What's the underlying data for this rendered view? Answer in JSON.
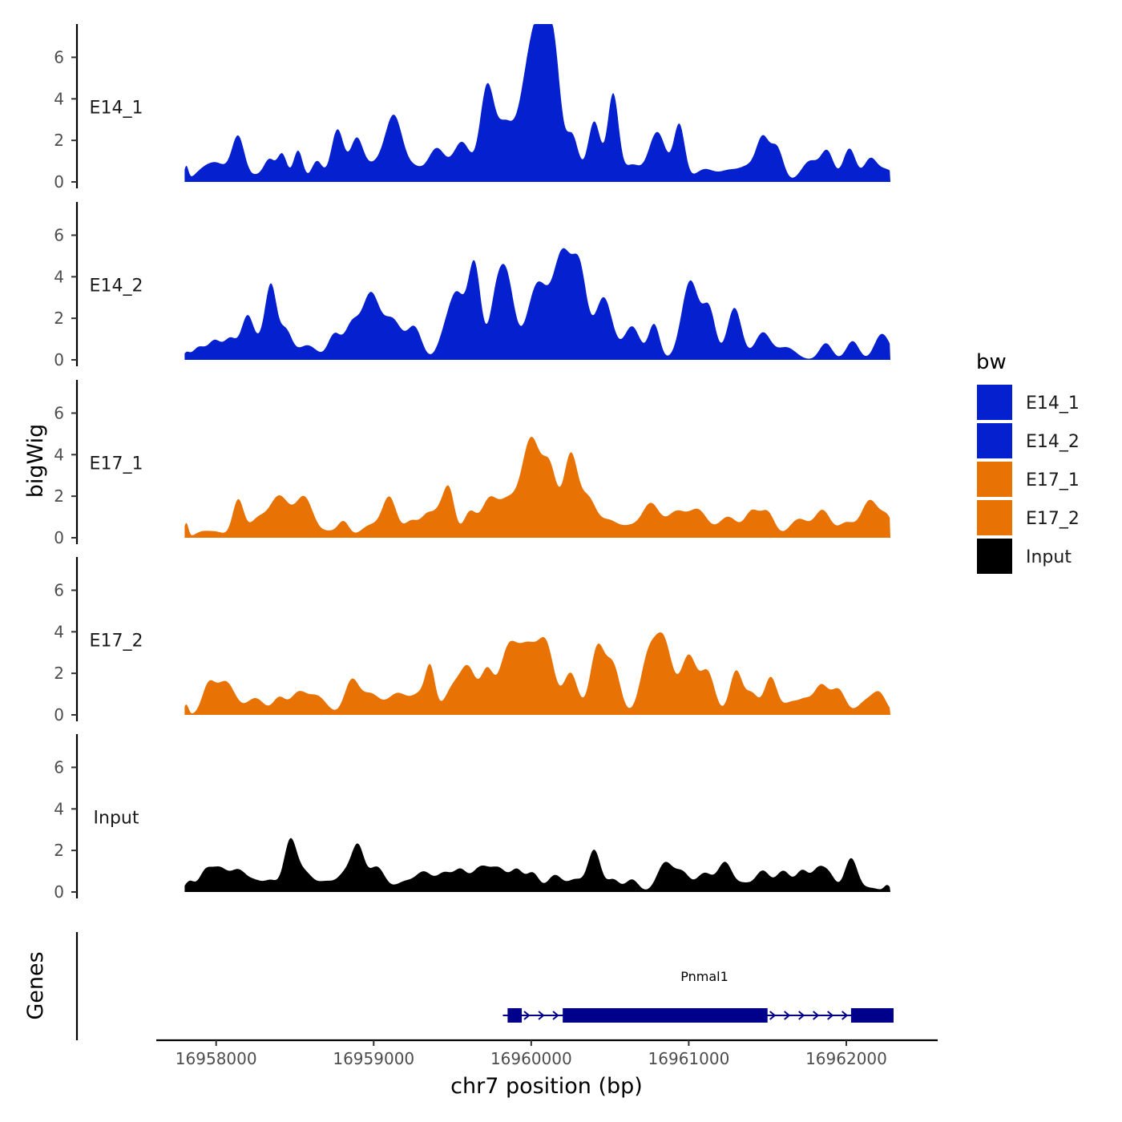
{
  "chart_data": {
    "type": "area",
    "xlabel": "chr7 position (bp)",
    "ylabel": "bigWig",
    "genes_label": "Genes",
    "xlim": [
      16957620,
      16962580
    ],
    "x_ticks": [
      16958000,
      16959000,
      16960000,
      16961000,
      16962000
    ],
    "x_tick_labels": [
      "16958000",
      "16959000",
      "16960000",
      "16961000",
      "16962000"
    ],
    "ylim": [
      0,
      7.6
    ],
    "y_ticks": [
      0,
      2,
      4,
      6
    ],
    "y_tick_labels": [
      "0",
      "2",
      "4",
      "6"
    ],
    "track_start": 16957800,
    "track_end": 16962280,
    "legend": {
      "title": "bw",
      "entries": [
        {
          "label": "E14_1",
          "color": "#0520CF"
        },
        {
          "label": "E14_2",
          "color": "#0520CF"
        },
        {
          "label": "E17_1",
          "color": "#E87204"
        },
        {
          "label": "E17_2",
          "color": "#E87204"
        },
        {
          "label": "Input",
          "color": "#000000"
        }
      ]
    },
    "series": [
      {
        "name": "E14_1",
        "color": "#0520CF",
        "peaks": [
          [
            16957810,
            0.7,
            14
          ],
          [
            16957900,
            0.3,
            50
          ],
          [
            16958000,
            0.9,
            70
          ],
          [
            16958140,
            2.1,
            40
          ],
          [
            16958260,
            0.3,
            50
          ],
          [
            16958340,
            1.0,
            35
          ],
          [
            16958420,
            1.3,
            30
          ],
          [
            16958520,
            1.5,
            30
          ],
          [
            16958640,
            1.0,
            35
          ],
          [
            16958770,
            2.5,
            40
          ],
          [
            16958890,
            1.8,
            40
          ],
          [
            16959000,
            0.8,
            80
          ],
          [
            16959130,
            3.0,
            55
          ],
          [
            16959260,
            0.6,
            50
          ],
          [
            16959400,
            1.6,
            55
          ],
          [
            16959560,
            1.9,
            55
          ],
          [
            16959720,
            4.5,
            45
          ],
          [
            16959830,
            2.4,
            50
          ],
          [
            16959990,
            5.1,
            70
          ],
          [
            16960080,
            5.0,
            60
          ],
          [
            16960150,
            4.0,
            40
          ],
          [
            16960260,
            2.2,
            40
          ],
          [
            16960400,
            2.9,
            40
          ],
          [
            16960520,
            4.2,
            35
          ],
          [
            16960640,
            0.8,
            50
          ],
          [
            16960800,
            2.4,
            55
          ],
          [
            16960940,
            2.7,
            35
          ],
          [
            16961100,
            0.6,
            60
          ],
          [
            16961250,
            0.5,
            60
          ],
          [
            16961380,
            0.7,
            60
          ],
          [
            16961470,
            1.9,
            40
          ],
          [
            16961560,
            1.6,
            40
          ],
          [
            16961770,
            1.0,
            55
          ],
          [
            16961880,
            1.4,
            40
          ],
          [
            16962020,
            1.6,
            40
          ],
          [
            16962150,
            1.0,
            40
          ],
          [
            16962250,
            0.6,
            60
          ]
        ]
      },
      {
        "name": "E14_2",
        "color": "#0520CF",
        "peaks": [
          [
            16957810,
            0.3,
            20
          ],
          [
            16957890,
            0.6,
            40
          ],
          [
            16957990,
            0.9,
            40
          ],
          [
            16958090,
            1.0,
            40
          ],
          [
            16958200,
            2.1,
            40
          ],
          [
            16958300,
            0.8,
            40
          ],
          [
            16958350,
            3.2,
            35
          ],
          [
            16958440,
            1.4,
            40
          ],
          [
            16958580,
            0.7,
            60
          ],
          [
            16958750,
            1.2,
            40
          ],
          [
            16958860,
            1.6,
            45
          ],
          [
            16958980,
            3.1,
            55
          ],
          [
            16959120,
            1.9,
            60
          ],
          [
            16959260,
            1.5,
            45
          ],
          [
            16959450,
            1.0,
            45
          ],
          [
            16959530,
            3.0,
            50
          ],
          [
            16959640,
            4.5,
            40
          ],
          [
            16959770,
            2.0,
            40
          ],
          [
            16959840,
            4.0,
            50
          ],
          [
            16960040,
            3.6,
            65
          ],
          [
            16960200,
            5.0,
            60
          ],
          [
            16960310,
            3.8,
            45
          ],
          [
            16960460,
            3.0,
            55
          ],
          [
            16960640,
            1.6,
            50
          ],
          [
            16960780,
            1.7,
            35
          ],
          [
            16961010,
            3.8,
            55
          ],
          [
            16961130,
            2.3,
            40
          ],
          [
            16961290,
            2.5,
            45
          ],
          [
            16961470,
            1.3,
            50
          ],
          [
            16961620,
            0.6,
            60
          ],
          [
            16961870,
            0.8,
            40
          ],
          [
            16962040,
            0.9,
            40
          ],
          [
            16962210,
            0.9,
            40
          ],
          [
            16962260,
            0.6,
            40
          ]
        ]
      },
      {
        "name": "E17_1",
        "color": "#E87204",
        "peaks": [
          [
            16957810,
            0.7,
            14
          ],
          [
            16957900,
            0.2,
            40
          ],
          [
            16957990,
            0.3,
            60
          ],
          [
            16958140,
            1.8,
            35
          ],
          [
            16958260,
            0.8,
            50
          ],
          [
            16958400,
            2.0,
            65
          ],
          [
            16958560,
            1.9,
            55
          ],
          [
            16958720,
            0.3,
            60
          ],
          [
            16958810,
            0.7,
            35
          ],
          [
            16958980,
            0.6,
            60
          ],
          [
            16959100,
            1.9,
            45
          ],
          [
            16959240,
            0.8,
            45
          ],
          [
            16959340,
            1.0,
            40
          ],
          [
            16959420,
            1.1,
            40
          ],
          [
            16959480,
            2.1,
            35
          ],
          [
            16959610,
            1.2,
            40
          ],
          [
            16959730,
            1.7,
            50
          ],
          [
            16959850,
            1.7,
            60
          ],
          [
            16960000,
            4.7,
            60
          ],
          [
            16960120,
            3.0,
            45
          ],
          [
            16960250,
            3.9,
            45
          ],
          [
            16960360,
            1.8,
            50
          ],
          [
            16960490,
            0.8,
            60
          ],
          [
            16960630,
            0.5,
            60
          ],
          [
            16960760,
            1.6,
            55
          ],
          [
            16960920,
            1.2,
            60
          ],
          [
            16961060,
            1.3,
            60
          ],
          [
            16961250,
            1.0,
            60
          ],
          [
            16961400,
            1.2,
            45
          ],
          [
            16961500,
            1.2,
            45
          ],
          [
            16961700,
            0.9,
            60
          ],
          [
            16961850,
            1.3,
            50
          ],
          [
            16962000,
            0.7,
            50
          ],
          [
            16962150,
            1.8,
            55
          ],
          [
            16962260,
            0.9,
            40
          ]
        ]
      },
      {
        "name": "E17_2",
        "color": "#E87204",
        "peaks": [
          [
            16957810,
            0.5,
            15
          ],
          [
            16957950,
            1.3,
            40
          ],
          [
            16958060,
            1.6,
            60
          ],
          [
            16958250,
            0.8,
            55
          ],
          [
            16958400,
            0.8,
            40
          ],
          [
            16958520,
            1.0,
            50
          ],
          [
            16958640,
            0.9,
            60
          ],
          [
            16958860,
            1.6,
            45
          ],
          [
            16958980,
            1.0,
            60
          ],
          [
            16959150,
            1.0,
            60
          ],
          [
            16959300,
            1.0,
            60
          ],
          [
            16959360,
            1.8,
            30
          ],
          [
            16959500,
            1.2,
            50
          ],
          [
            16959600,
            2.2,
            50
          ],
          [
            16959720,
            2.0,
            40
          ],
          [
            16959850,
            2.8,
            55
          ],
          [
            16959980,
            3.2,
            70
          ],
          [
            16960100,
            2.8,
            50
          ],
          [
            16960250,
            2.0,
            45
          ],
          [
            16960420,
            3.2,
            45
          ],
          [
            16960520,
            2.3,
            45
          ],
          [
            16960740,
            2.5,
            50
          ],
          [
            16960840,
            3.5,
            55
          ],
          [
            16961000,
            2.8,
            50
          ],
          [
            16961120,
            2.0,
            45
          ],
          [
            16961300,
            2.1,
            40
          ],
          [
            16961400,
            1.0,
            40
          ],
          [
            16961520,
            1.8,
            40
          ],
          [
            16961650,
            0.6,
            50
          ],
          [
            16961740,
            0.6,
            40
          ],
          [
            16961840,
            1.4,
            45
          ],
          [
            16961950,
            1.2,
            45
          ],
          [
            16962120,
            0.6,
            50
          ],
          [
            16962210,
            1.0,
            45
          ]
        ]
      },
      {
        "name": "Input",
        "color": "#000000",
        "peaks": [
          [
            16957830,
            0.5,
            30
          ],
          [
            16957930,
            0.9,
            40
          ],
          [
            16958020,
            1.1,
            50
          ],
          [
            16958140,
            1.0,
            50
          ],
          [
            16958250,
            0.5,
            50
          ],
          [
            16958350,
            0.5,
            40
          ],
          [
            16958470,
            2.4,
            40
          ],
          [
            16958560,
            0.9,
            50
          ],
          [
            16958700,
            0.5,
            60
          ],
          [
            16958820,
            0.8,
            45
          ],
          [
            16958900,
            2.1,
            40
          ],
          [
            16959020,
            1.2,
            50
          ],
          [
            16959200,
            0.5,
            60
          ],
          [
            16959320,
            0.9,
            50
          ],
          [
            16959450,
            0.9,
            50
          ],
          [
            16959550,
            0.9,
            40
          ],
          [
            16959680,
            1.2,
            60
          ],
          [
            16959800,
            1.0,
            50
          ],
          [
            16959910,
            1.0,
            40
          ],
          [
            16960010,
            0.9,
            40
          ],
          [
            16960150,
            0.8,
            45
          ],
          [
            16960280,
            0.6,
            50
          ],
          [
            16960400,
            2.0,
            40
          ],
          [
            16960520,
            0.6,
            40
          ],
          [
            16960640,
            0.6,
            40
          ],
          [
            16960850,
            1.4,
            50
          ],
          [
            16960960,
            0.9,
            45
          ],
          [
            16961100,
            0.9,
            50
          ],
          [
            16961230,
            1.4,
            45
          ],
          [
            16961350,
            0.4,
            50
          ],
          [
            16961470,
            1.0,
            45
          ],
          [
            16961600,
            1.0,
            45
          ],
          [
            16961720,
            1.0,
            40
          ],
          [
            16961820,
            1.0,
            40
          ],
          [
            16961890,
            0.8,
            40
          ],
          [
            16962030,
            1.6,
            40
          ],
          [
            16962150,
            0.2,
            60
          ],
          [
            16962260,
            0.3,
            20
          ]
        ]
      }
    ],
    "gene": {
      "name": "Pnmal1",
      "strand": "+",
      "start": 16959820,
      "end": 16962300,
      "exons": [
        [
          16959850,
          16959940
        ],
        [
          16960200,
          16961500
        ],
        [
          16962030,
          16962300
        ]
      ]
    }
  }
}
